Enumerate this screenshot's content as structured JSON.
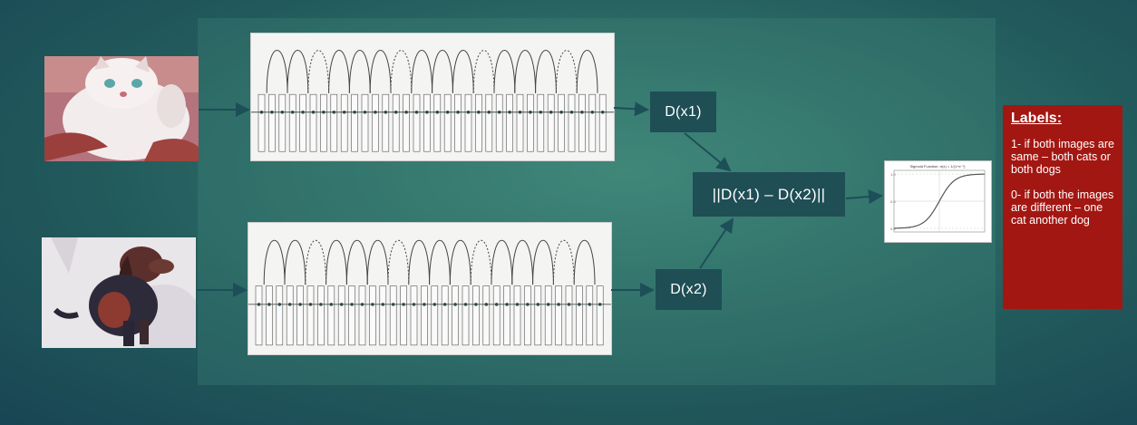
{
  "inputs": [
    {
      "name": "cat",
      "image": "cat-photo"
    },
    {
      "name": "dog",
      "image": "dog-photo"
    }
  ],
  "encoders": [
    {
      "output_label": "D(x1)"
    },
    {
      "output_label": "D(x2)"
    }
  ],
  "distance_label": "||D(x1) – D(x2)||",
  "sigmoid": {
    "title": "Sigmoid Function: σ(x) = 1/(1+e⁻ˣ)"
  },
  "labels": {
    "title": "Labels:",
    "positive": "1- if both images are same – both cats or both dogs",
    "negative": "0- if both the images are different – one cat another dog"
  },
  "colors": {
    "background": "#2f6f68",
    "box": "#1f4e55",
    "labels_box": "#a31712",
    "arrow": "#1d4f58"
  }
}
